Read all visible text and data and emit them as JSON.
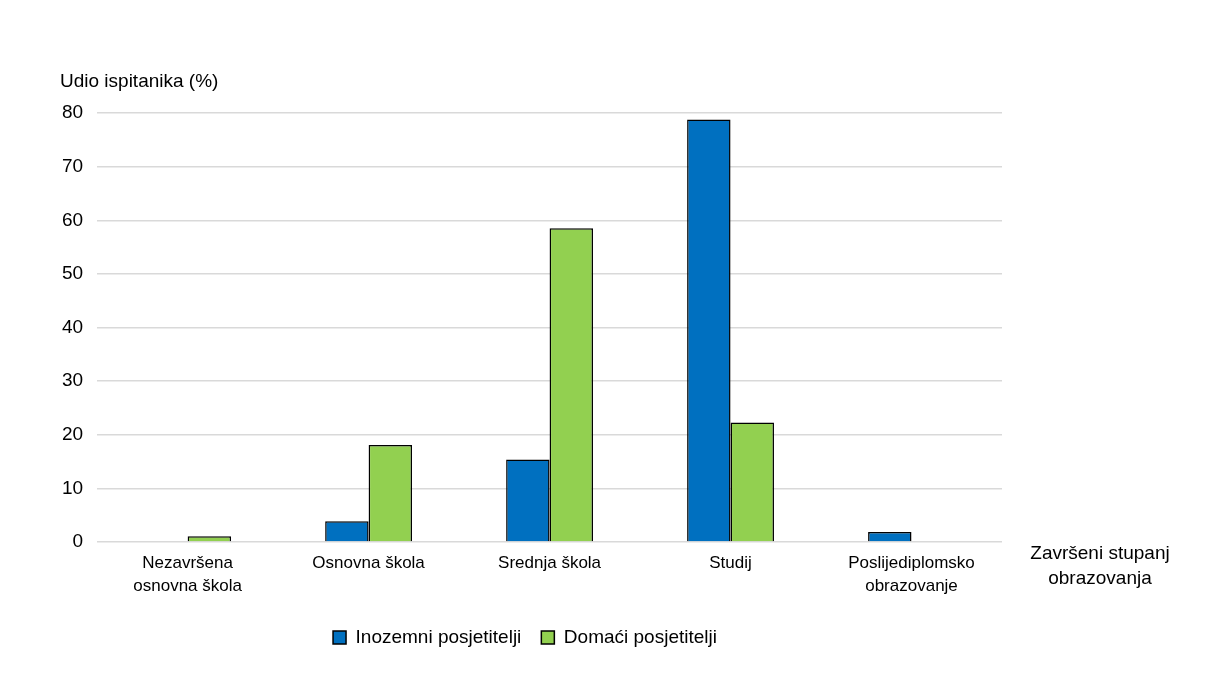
{
  "chart_data": {
    "type": "bar",
    "ylabel": "Udio ispitanika (%)",
    "xlabel": "Završeni stupanj obrazovanja",
    "categories": [
      "Nezavršena osnovna škola",
      "Osnovna škola",
      "Srednja škola",
      "Studij",
      "Poslijediplomsko obrazovanje"
    ],
    "series": [
      {
        "name": "Inozemni posjetitelji",
        "color": "#0070c0",
        "values": [
          0,
          3.9,
          15.4,
          78.8,
          1.9
        ]
      },
      {
        "name": "Domaći posjetitelji",
        "color": "#92d050",
        "values": [
          1.1,
          18.1,
          58.5,
          22.3,
          0
        ]
      }
    ],
    "ylim": [
      0,
      80
    ],
    "yticks": [
      0,
      10,
      20,
      30,
      40,
      50,
      60,
      70,
      80
    ],
    "grid": "y",
    "legend": "bottom"
  }
}
